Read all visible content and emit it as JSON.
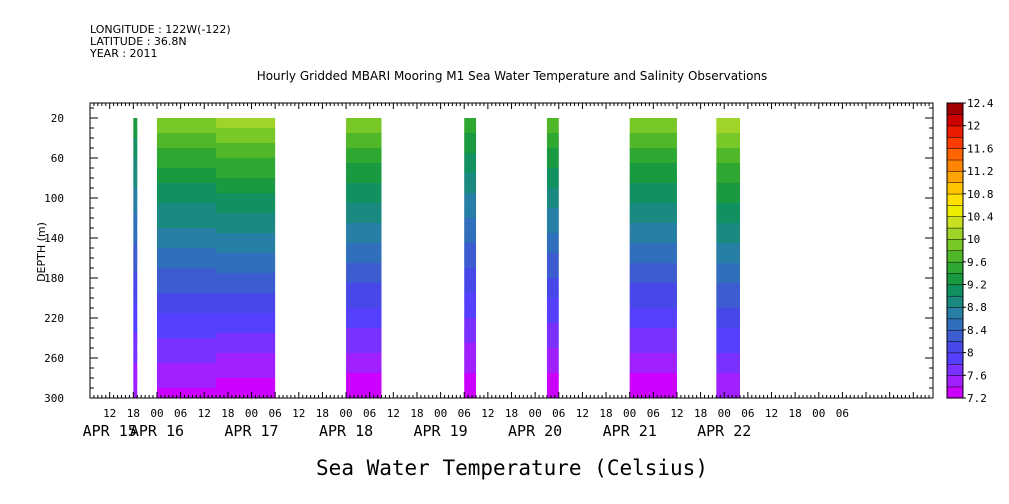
{
  "header": {
    "longitude": "LONGITUDE : 122W(-122)",
    "latitude": "LATITUDE : 36.8N",
    "year": "YEAR : 2011",
    "title": "Hourly Gridded MBARI Mooring M1 Sea Water Temperature and Salinity Observations"
  },
  "chart_data": {
    "type": "heatmap",
    "title": "Hourly Gridded MBARI Mooring M1 Sea Water Temperature and Salinity Observations",
    "xlabel": "",
    "ylabel": "DEPTH (m)",
    "subtitle": "Sea Water Temperature (Celsius)",
    "x_hour_ticks": [
      "12",
      "18",
      "00",
      "06",
      "12",
      "18",
      "00",
      "06",
      "12",
      "18",
      "00",
      "06",
      "12",
      "18",
      "00",
      "06",
      "12",
      "18",
      "00",
      "06",
      "12",
      "18",
      "00",
      "06",
      "12",
      "18",
      "00",
      "06",
      "12",
      "18",
      "00",
      "06"
    ],
    "x_day_labels": [
      "APR 15",
      "APR 16",
      "APR 17",
      "APR 18",
      "APR 19",
      "APR 20",
      "APR 21",
      "APR 22"
    ],
    "y_ticks": [
      20,
      60,
      100,
      140,
      180,
      220,
      260,
      300
    ],
    "ylim": [
      300,
      5
    ],
    "xlim_hours_from_apr15_00": [
      7,
      221
    ],
    "colorbar": {
      "levels": [
        7.2,
        7.4,
        7.6,
        7.8,
        8,
        8.2,
        8.4,
        8.6,
        8.8,
        9,
        9.2,
        9.4,
        9.6,
        9.8,
        10,
        10.2,
        10.4,
        10.6,
        10.8,
        11,
        11.2,
        11.4,
        11.6,
        11.8,
        12,
        12.2,
        12.4
      ],
      "tick_labels": [
        "12.4",
        "12",
        "11.6",
        "11.2",
        "10.8",
        "10.4",
        "10",
        "9.6",
        "9.2",
        "8.8",
        "8.4",
        "8",
        "7.6",
        "7.2"
      ],
      "colors": [
        "#cc00ff",
        "#a020ff",
        "#7a30ff",
        "#5540ff",
        "#4848e8",
        "#3c5cd0",
        "#2f6fbc",
        "#277fa6",
        "#1a8a80",
        "#119060",
        "#1a9a40",
        "#2ea830",
        "#50b828",
        "#78c828",
        "#a0d428",
        "#c8e020",
        "#ecec00",
        "#ffe000",
        "#ffc400",
        "#ffa400",
        "#ff8400",
        "#ff6400",
        "#ff3c00",
        "#ec1c00",
        "#cc0000",
        "#a00000"
      ]
    },
    "data_blocks": [
      {
        "start_hour": 18.0,
        "end_hour": 19.0,
        "surface_temp": 9.4,
        "bottom_temp": 7.4
      },
      {
        "start_hour": 24.0,
        "end_hour": 40.0,
        "surface_temp": 10.0,
        "bottom_temp": 7.3
      },
      {
        "start_hour": 39.0,
        "end_hour": 54.0,
        "surface_temp": 10.2,
        "bottom_temp": 7.2
      },
      {
        "start_hour": 72.0,
        "end_hour": 81.0,
        "surface_temp": 10.0,
        "bottom_temp": 7.2
      },
      {
        "start_hour": 102.0,
        "end_hour": 105.0,
        "surface_temp": 9.6,
        "bottom_temp": 7.2
      },
      {
        "start_hour": 123.0,
        "end_hour": 126.0,
        "surface_temp": 9.8,
        "bottom_temp": 7.2
      },
      {
        "start_hour": 144.0,
        "end_hour": 156.0,
        "surface_temp": 10.0,
        "bottom_temp": 7.2
      },
      {
        "start_hour": 166.0,
        "end_hour": 172.0,
        "surface_temp": 10.2,
        "bottom_temp": 7.4
      }
    ]
  }
}
